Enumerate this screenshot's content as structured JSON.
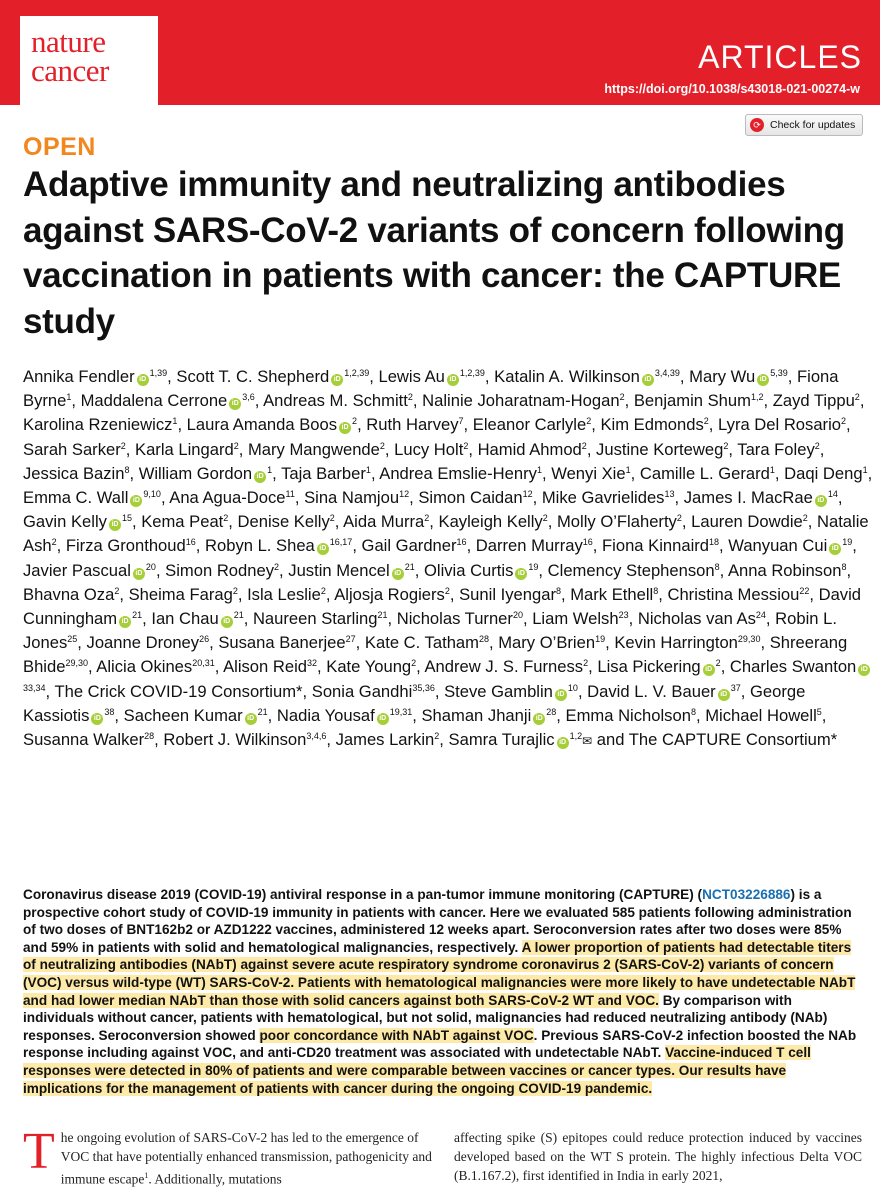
{
  "header": {
    "logo_line1": "nature",
    "logo_line2": "cancer",
    "section": "ARTICLES",
    "doi": "https://doi.org/10.1038/s43018-021-00274-w",
    "check_updates": "Check for updates",
    "brand_color": "#e3202a"
  },
  "article": {
    "open_label": "OPEN",
    "title": "Adaptive immunity and neutralizing antibodies against SARS-CoV-2 variants of concern following vaccination in patients with cancer: the CAPTURE study"
  },
  "authors": [
    {
      "n": "Annika Fendler",
      "o": true,
      "s": "1,39"
    },
    {
      "n": "Scott T. C. Shepherd",
      "o": true,
      "s": "1,2,39"
    },
    {
      "n": "Lewis Au",
      "o": true,
      "s": "1,2,39"
    },
    {
      "n": "Katalin A. Wilkinson",
      "o": true,
      "s": "3,4,39"
    },
    {
      "n": "Mary Wu",
      "o": true,
      "s": "5,39"
    },
    {
      "n": "Fiona Byrne",
      "o": false,
      "s": "1"
    },
    {
      "n": "Maddalena Cerrone",
      "o": true,
      "s": "3,6"
    },
    {
      "n": "Andreas M. Schmitt",
      "o": false,
      "s": "2"
    },
    {
      "n": "Nalinie Joharatnam-Hogan",
      "o": false,
      "s": "2"
    },
    {
      "n": "Benjamin Shum",
      "o": false,
      "s": "1,2"
    },
    {
      "n": "Zayd Tippu",
      "o": false,
      "s": "2"
    },
    {
      "n": "Karolina Rzeniewicz",
      "o": false,
      "s": "1"
    },
    {
      "n": "Laura Amanda Boos",
      "o": true,
      "s": "2"
    },
    {
      "n": "Ruth Harvey",
      "o": false,
      "s": "7"
    },
    {
      "n": "Eleanor Carlyle",
      "o": false,
      "s": "2"
    },
    {
      "n": "Kim Edmonds",
      "o": false,
      "s": "2"
    },
    {
      "n": "Lyra Del Rosario",
      "o": false,
      "s": "2"
    },
    {
      "n": "Sarah Sarker",
      "o": false,
      "s": "2"
    },
    {
      "n": "Karla Lingard",
      "o": false,
      "s": "2"
    },
    {
      "n": "Mary Mangwende",
      "o": false,
      "s": "2"
    },
    {
      "n": "Lucy Holt",
      "o": false,
      "s": "2"
    },
    {
      "n": "Hamid Ahmod",
      "o": false,
      "s": "2"
    },
    {
      "n": "Justine Korteweg",
      "o": false,
      "s": "2"
    },
    {
      "n": "Tara Foley",
      "o": false,
      "s": "2"
    },
    {
      "n": "Jessica Bazin",
      "o": false,
      "s": "8"
    },
    {
      "n": "William Gordon",
      "o": true,
      "s": "1"
    },
    {
      "n": "Taja Barber",
      "o": false,
      "s": "1"
    },
    {
      "n": "Andrea Emslie-Henry",
      "o": false,
      "s": "1"
    },
    {
      "n": "Wenyi Xie",
      "o": false,
      "s": "1"
    },
    {
      "n": "Camille L. Gerard",
      "o": false,
      "s": "1"
    },
    {
      "n": "Daqi Deng",
      "o": false,
      "s": "1"
    },
    {
      "n": "Emma C. Wall",
      "o": true,
      "s": "9,10"
    },
    {
      "n": "Ana Agua-Doce",
      "o": false,
      "s": "11"
    },
    {
      "n": "Sina Namjou",
      "o": false,
      "s": "12"
    },
    {
      "n": "Simon Caidan",
      "o": false,
      "s": "12"
    },
    {
      "n": "Mike Gavrielides",
      "o": false,
      "s": "13"
    },
    {
      "n": "James I. MacRae",
      "o": true,
      "s": "14"
    },
    {
      "n": "Gavin Kelly",
      "o": true,
      "s": "15"
    },
    {
      "n": "Kema Peat",
      "o": false,
      "s": "2"
    },
    {
      "n": "Denise Kelly",
      "o": false,
      "s": "2"
    },
    {
      "n": "Aida Murra",
      "o": false,
      "s": "2"
    },
    {
      "n": "Kayleigh Kelly",
      "o": false,
      "s": "2"
    },
    {
      "n": "Molly O’Flaherty",
      "o": false,
      "s": "2"
    },
    {
      "n": "Lauren Dowdie",
      "o": false,
      "s": "2"
    },
    {
      "n": "Natalie Ash",
      "o": false,
      "s": "2"
    },
    {
      "n": "Firza Gronthoud",
      "o": false,
      "s": "16"
    },
    {
      "n": "Robyn L. Shea",
      "o": true,
      "s": "16,17"
    },
    {
      "n": "Gail Gardner",
      "o": false,
      "s": "16"
    },
    {
      "n": "Darren Murray",
      "o": false,
      "s": "16"
    },
    {
      "n": "Fiona Kinnaird",
      "o": false,
      "s": "18"
    },
    {
      "n": "Wanyuan Cui",
      "o": true,
      "s": "19"
    },
    {
      "n": "Javier Pascual",
      "o": true,
      "s": "20"
    },
    {
      "n": "Simon Rodney",
      "o": false,
      "s": "2"
    },
    {
      "n": "Justin Mencel",
      "o": true,
      "s": "21"
    },
    {
      "n": "Olivia Curtis",
      "o": true,
      "s": "19"
    },
    {
      "n": "Clemency Stephenson",
      "o": false,
      "s": "8"
    },
    {
      "n": "Anna Robinson",
      "o": false,
      "s": "8"
    },
    {
      "n": "Bhavna Oza",
      "o": false,
      "s": "2"
    },
    {
      "n": "Sheima Farag",
      "o": false,
      "s": "2"
    },
    {
      "n": "Isla Leslie",
      "o": false,
      "s": "2"
    },
    {
      "n": "Aljosja Rogiers",
      "o": false,
      "s": "2"
    },
    {
      "n": "Sunil Iyengar",
      "o": false,
      "s": "8"
    },
    {
      "n": "Mark Ethell",
      "o": false,
      "s": "8"
    },
    {
      "n": "Christina Messiou",
      "o": false,
      "s": "22"
    },
    {
      "n": "David Cunningham",
      "o": true,
      "s": "21"
    },
    {
      "n": "Ian Chau",
      "o": true,
      "s": "21"
    },
    {
      "n": "Naureen Starling",
      "o": false,
      "s": "21"
    },
    {
      "n": "Nicholas Turner",
      "o": false,
      "s": "20"
    },
    {
      "n": "Liam Welsh",
      "o": false,
      "s": "23"
    },
    {
      "n": "Nicholas van As",
      "o": false,
      "s": "24"
    },
    {
      "n": "Robin L. Jones",
      "o": false,
      "s": "25"
    },
    {
      "n": "Joanne Droney",
      "o": false,
      "s": "26"
    },
    {
      "n": "Susana Banerjee",
      "o": false,
      "s": "27"
    },
    {
      "n": "Kate C. Tatham",
      "o": false,
      "s": "28"
    },
    {
      "n": "Mary O’Brien",
      "o": false,
      "s": "19"
    },
    {
      "n": "Kevin Harrington",
      "o": false,
      "s": "29,30"
    },
    {
      "n": "Shreerang Bhide",
      "o": false,
      "s": "29,30"
    },
    {
      "n": "Alicia Okines",
      "o": false,
      "s": "20,31"
    },
    {
      "n": "Alison Reid",
      "o": false,
      "s": "32"
    },
    {
      "n": "Kate Young",
      "o": false,
      "s": "2"
    },
    {
      "n": "Andrew J. S. Furness",
      "o": false,
      "s": "2"
    },
    {
      "n": "Lisa Pickering",
      "o": true,
      "s": "2"
    },
    {
      "n": "Charles Swanton",
      "o": true,
      "s": "33,34"
    },
    {
      "n": "The Crick COVID-19 Consortium*",
      "o": false,
      "s": ""
    },
    {
      "n": "Sonia Gandhi",
      "o": false,
      "s": "35,36"
    },
    {
      "n": "Steve Gamblin",
      "o": true,
      "s": "10"
    },
    {
      "n": "David L. V. Bauer",
      "o": true,
      "s": "37"
    },
    {
      "n": "George Kassiotis",
      "o": true,
      "s": "38"
    },
    {
      "n": "Sacheen Kumar",
      "o": true,
      "s": "21"
    },
    {
      "n": "Nadia Yousaf",
      "o": true,
      "s": "19,31"
    },
    {
      "n": "Shaman Jhanji",
      "o": true,
      "s": "28"
    },
    {
      "n": "Emma Nicholson",
      "o": false,
      "s": "8"
    },
    {
      "n": "Michael Howell",
      "o": false,
      "s": "5"
    },
    {
      "n": "Susanna Walker",
      "o": false,
      "s": "28"
    },
    {
      "n": "Robert J. Wilkinson",
      "o": false,
      "s": "3,4,6"
    },
    {
      "n": "James Larkin",
      "o": false,
      "s": "2"
    },
    {
      "n": "Samra Turajlic",
      "o": true,
      "s": "1,2",
      "mail": true
    },
    {
      "n": "and The CAPTURE Consortium*",
      "o": false,
      "s": ""
    }
  ],
  "abstract": [
    {
      "t": "Coronavirus disease 2019 (COVID-19) antiviral response in a pan-tumor immune monitoring (CAPTURE) (",
      "h": false
    },
    {
      "t": "NCT03226886",
      "h": false,
      "link": true
    },
    {
      "t": ") is a prospective cohort study of COVID-19 immunity in patients with cancer. Here we evaluated 585 patients following administration of two doses of BNT162b2 or AZD1222 vaccines, administered 12 weeks apart. Seroconversion rates after two doses were 85% and 59% in patients with solid and hematological malignancies, respectively. ",
      "h": false
    },
    {
      "t": "A lower proportion of patients had detectable titers of neutralizing antibodies (NAbT) against severe acute respiratory syndrome coronavirus 2 (SARS-CoV-2) variants of concern (VOC) versus wild-type (WT) SARS-CoV-2. Patients with hematological malignancies were more likely to have undetectable NAbT and had lower median NAbT than those with solid cancers against both SARS-CoV-2 WT and VOC.",
      "h": true
    },
    {
      "t": " By comparison with individuals without cancer, patients with hematological, but not solid, malignancies had reduced neutralizing antibody (NAb) responses. Seroconversion showed ",
      "h": false
    },
    {
      "t": "poor concordance with NAbT against VOC",
      "h": true
    },
    {
      "t": ". Previous SARS-CoV-2 infection boosted the NAb response including against VOC, and anti-CD20 treatment was associated with undetectable NAbT. ",
      "h": false
    },
    {
      "t": "Vaccine-induced T cell responses were detected in 80% of patients and were comparable between vaccines or cancer types. Our results have implications for the management of patients with cancer during the ongoing COVID-19 pandemic.",
      "h": true
    }
  ],
  "body": {
    "dropcap": "T",
    "col1": "he ongoing evolution of SARS-CoV-2 has led to the emergence of VOC that have potentially enhanced transmission, pathogenicity and immune escape",
    "col1_ref": "1",
    "col1_tail": ". Additionally, mutations",
    "col2": "affecting spike (S) epitopes could reduce protection induced by vaccines developed based on the WT S protein. The highly infectious Delta VOC (B.1.167.2), first identified in India in early 2021,"
  }
}
